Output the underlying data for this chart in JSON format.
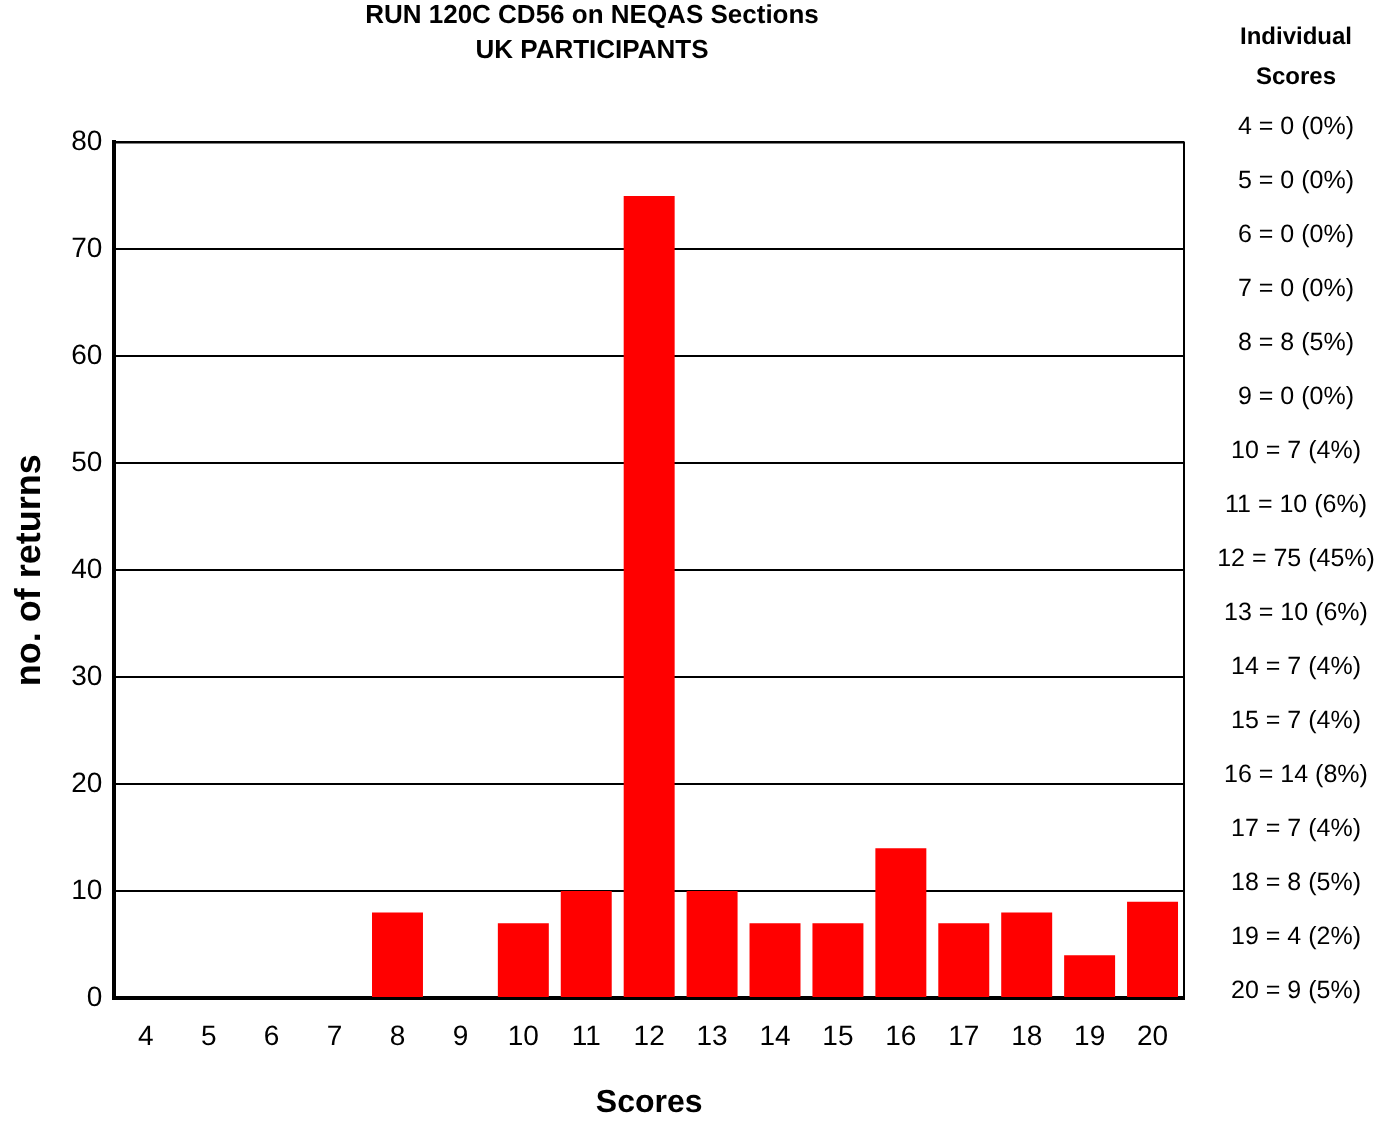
{
  "chart_data": {
    "type": "bar",
    "title": "RUN 120C CD56 on NEQAS Sections",
    "subtitle": "UK PARTICIPANTS",
    "xlabel": "Scores",
    "ylabel": "no. of returns",
    "legend_title": "Individual Scores",
    "categories": [
      "4",
      "5",
      "6",
      "7",
      "8",
      "9",
      "10",
      "11",
      "12",
      "13",
      "14",
      "15",
      "16",
      "17",
      "18",
      "19",
      "20"
    ],
    "values": [
      0,
      0,
      0,
      0,
      8,
      0,
      7,
      10,
      75,
      10,
      7,
      7,
      14,
      7,
      8,
      4,
      9
    ],
    "color": "#ff0000",
    "ylim": [
      0,
      80
    ],
    "yticks": [
      0,
      10,
      20,
      30,
      40,
      50,
      60,
      70,
      80
    ],
    "grid": "y",
    "annotations": [
      "4 = 0 (0%)",
      "5 = 0 (0%)",
      "6 = 0 (0%)",
      "7 = 0 (0%)",
      "8 = 8 (5%)",
      "9 = 0 (0%)",
      "10 = 7 (4%)",
      "11 = 10 (6%)",
      "12 = 75 (45%)",
      "13 = 10 (6%)",
      "14 = 7 (4%)",
      "15 = 7 (4%)",
      "16 = 14 (8%)",
      "17 = 7 (4%)",
      "18 = 8 (5%)",
      "19 = 4 (2%)",
      "20 = 9 (5%)"
    ]
  }
}
